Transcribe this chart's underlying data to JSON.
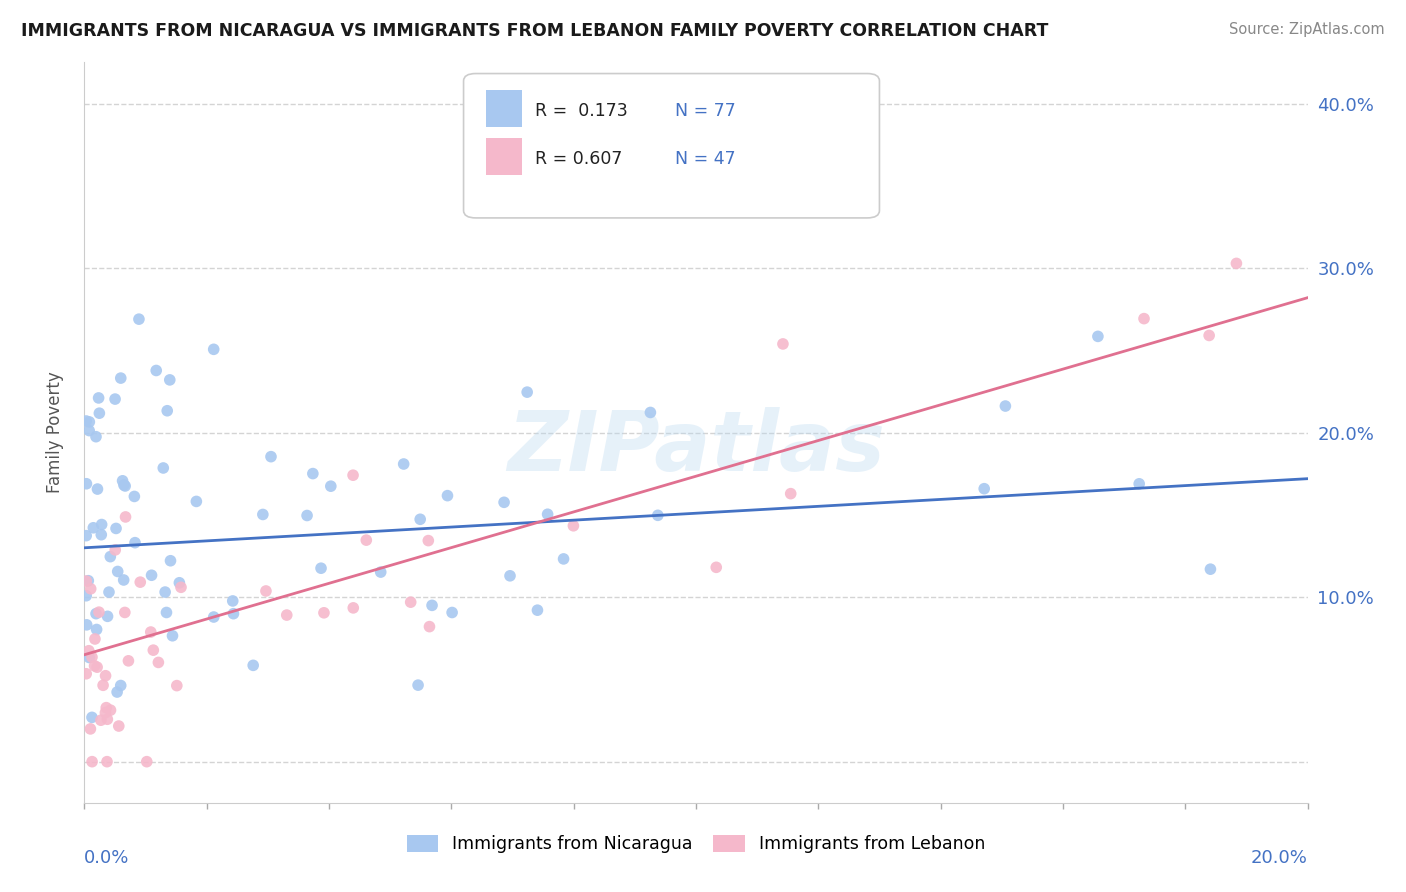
{
  "title": "IMMIGRANTS FROM NICARAGUA VS IMMIGRANTS FROM LEBANON FAMILY POVERTY CORRELATION CHART",
  "source": "Source: ZipAtlas.com",
  "ylabel": "Family Poverty",
  "y_ticks": [
    0.0,
    0.1,
    0.2,
    0.3,
    0.4
  ],
  "y_tick_labels": [
    "",
    "10.0%",
    "20.0%",
    "30.0%",
    "40.0%"
  ],
  "xlim": [
    0.0,
    0.2
  ],
  "ylim": [
    -0.025,
    0.425
  ],
  "nicaragua_color": "#a8c8f0",
  "lebanon_color": "#f5b8cb",
  "nicaragua_line_color": "#4472c4",
  "lebanon_line_color": "#e07090",
  "legend_R_nicaragua": "R =  0.173",
  "legend_N_nicaragua": "N = 77",
  "legend_R_lebanon": "R = 0.607",
  "legend_N_lebanon": "N = 47",
  "nic_line_x0": 0.0,
  "nic_line_y0": 0.13,
  "nic_line_x1": 0.2,
  "nic_line_y1": 0.172,
  "leb_line_x0": 0.0,
  "leb_line_y0": 0.065,
  "leb_line_x1": 0.2,
  "leb_line_y1": 0.282,
  "watermark_text": "ZIPatlas",
  "background_color": "#ffffff",
  "grid_color": "#d0d0d0",
  "title_color": "#1a1a1a",
  "source_color": "#888888",
  "tick_label_color": "#4472c4",
  "ylabel_color": "#555555",
  "legend_text_color_blue": "#4472c4",
  "legend_text_color_black": "#222222"
}
